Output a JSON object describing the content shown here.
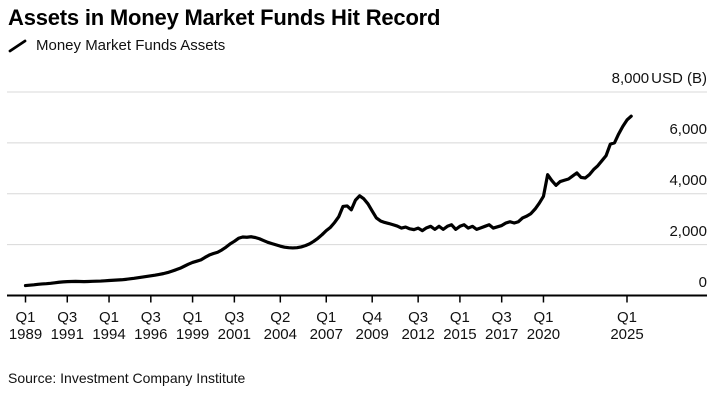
{
  "chart_data": {
    "type": "line",
    "title": "Assets in Money Market Funds Hit Record",
    "legend_mark": "line-sample",
    "grid": "horizontal",
    "line_color": "#000000",
    "gridline_color": "#d8d8d8",
    "y_axis": {
      "position": "right",
      "unit": "USD (B)",
      "range": [
        0,
        8000
      ],
      "ticks": [
        {
          "value": 8000,
          "label": "8,000"
        },
        {
          "value": 6000,
          "label": "6,000"
        },
        {
          "value": 4000,
          "label": "4,000"
        },
        {
          "value": 2000,
          "label": "2,000"
        },
        {
          "value": 0,
          "label": "0"
        }
      ]
    },
    "x_axis": {
      "frequency": "quarterly",
      "start": "1989Q1",
      "end": "2025Q2",
      "ticks": [
        {
          "index": 0,
          "quarter": "Q1",
          "year": "1989"
        },
        {
          "index": 10,
          "quarter": "Q3",
          "year": "1991"
        },
        {
          "index": 20,
          "quarter": "Q1",
          "year": "1994"
        },
        {
          "index": 30,
          "quarter": "Q3",
          "year": "1996"
        },
        {
          "index": 40,
          "quarter": "Q1",
          "year": "1999"
        },
        {
          "index": 50,
          "quarter": "Q3",
          "year": "2001"
        },
        {
          "index": 61,
          "quarter": "Q2",
          "year": "2004"
        },
        {
          "index": 72,
          "quarter": "Q1",
          "year": "2007"
        },
        {
          "index": 83,
          "quarter": "Q4",
          "year": "2009"
        },
        {
          "index": 94,
          "quarter": "Q3",
          "year": "2012"
        },
        {
          "index": 104,
          "quarter": "Q1",
          "year": "2015"
        },
        {
          "index": 114,
          "quarter": "Q3",
          "year": "2017"
        },
        {
          "index": 124,
          "quarter": "Q1",
          "year": "2020"
        },
        {
          "index": 144,
          "quarter": "Q1",
          "year": "2025"
        }
      ]
    },
    "series": [
      {
        "name": "Money Market Funds Assets",
        "values": [
          390,
          405,
          420,
          440,
          455,
          465,
          480,
          500,
          520,
          535,
          545,
          550,
          555,
          550,
          545,
          550,
          558,
          562,
          568,
          578,
          590,
          600,
          608,
          618,
          635,
          655,
          675,
          700,
          725,
          750,
          775,
          800,
          830,
          860,
          900,
          955,
          1010,
          1070,
          1150,
          1230,
          1300,
          1350,
          1400,
          1500,
          1590,
          1650,
          1700,
          1790,
          1900,
          2030,
          2130,
          2250,
          2300,
          2290,
          2310,
          2280,
          2230,
          2160,
          2090,
          2040,
          1990,
          1940,
          1900,
          1880,
          1870,
          1880,
          1910,
          1960,
          2030,
          2130,
          2250,
          2390,
          2550,
          2680,
          2870,
          3100,
          3500,
          3520,
          3370,
          3750,
          3920,
          3800,
          3600,
          3320,
          3050,
          2930,
          2870,
          2830,
          2780,
          2730,
          2650,
          2690,
          2620,
          2590,
          2650,
          2550,
          2660,
          2720,
          2600,
          2720,
          2600,
          2720,
          2780,
          2600,
          2720,
          2780,
          2650,
          2720,
          2600,
          2660,
          2720,
          2780,
          2650,
          2700,
          2750,
          2850,
          2900,
          2850,
          2900,
          3050,
          3120,
          3220,
          3400,
          3630,
          3900,
          4750,
          4520,
          4330,
          4480,
          4530,
          4580,
          4700,
          4820,
          4640,
          4620,
          4750,
          4950,
          5100,
          5300,
          5500,
          5950,
          6000,
          6350,
          6650,
          6900,
          7050
        ]
      }
    ]
  },
  "source": {
    "text": "Source: Investment Company Institute"
  }
}
